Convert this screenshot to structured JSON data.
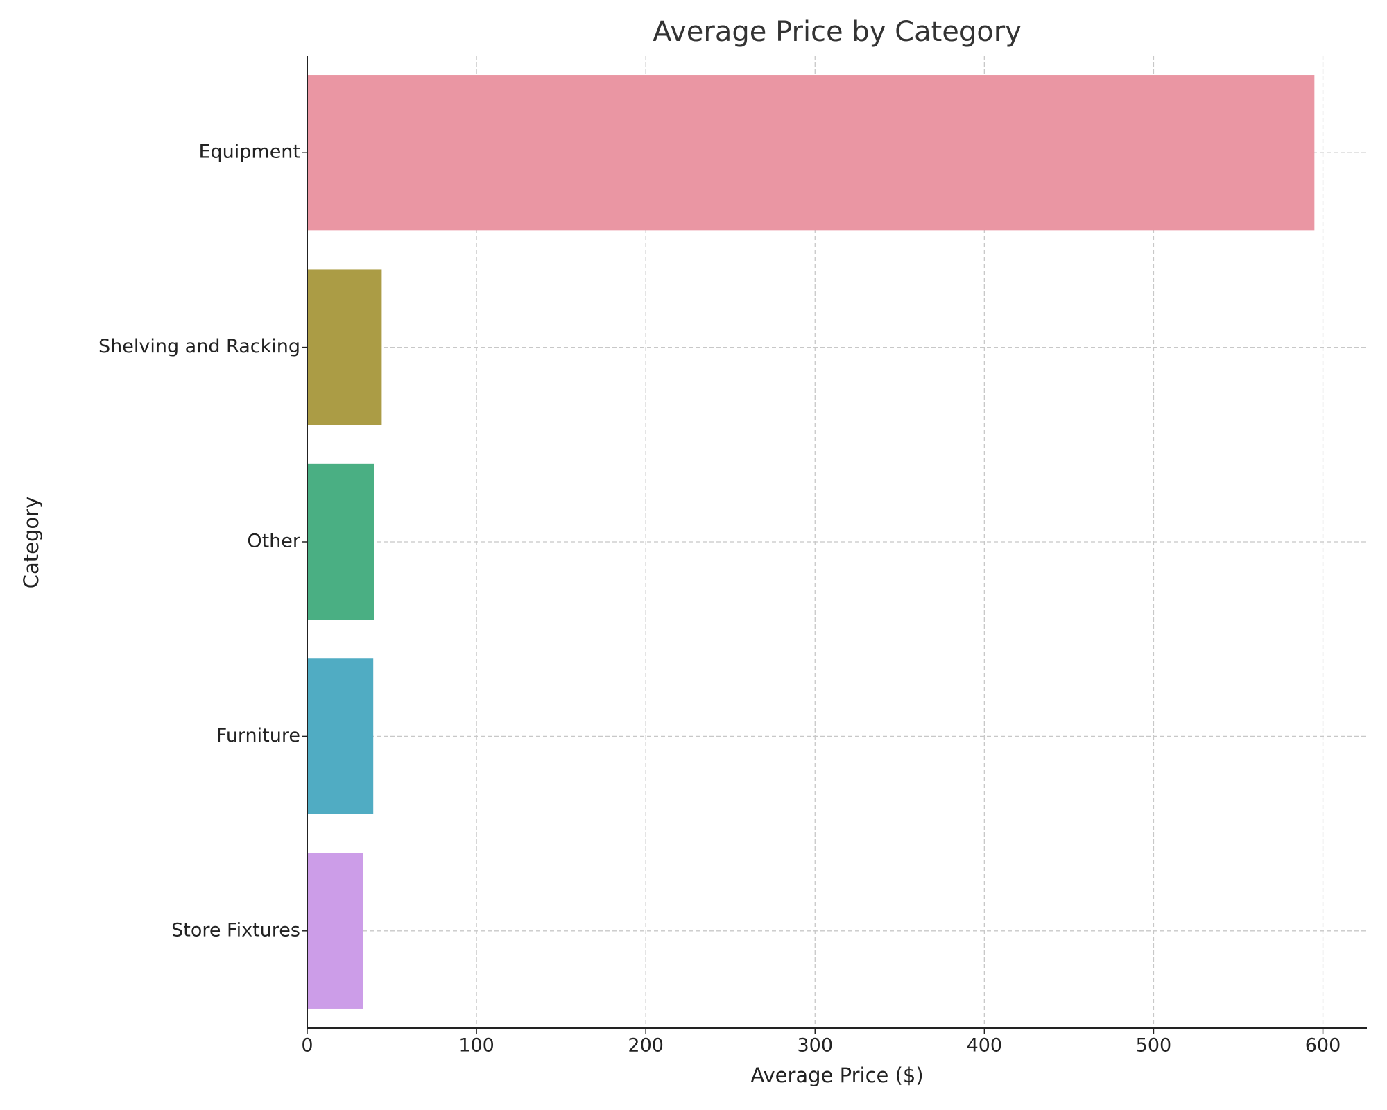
{
  "chart_data": {
    "type": "barh",
    "title": "Average Price by Category",
    "x_label": "Average Price ($)",
    "y_label": "Category",
    "categories": [
      "Equipment",
      "Shelving and Racking",
      "Other",
      "Furniture",
      "Store Fixtures"
    ],
    "values": [
      595,
      44,
      39.5,
      39,
      33
    ],
    "colors": [
      "#ea96a3",
      "#ab9c45",
      "#4aaf83",
      "#50acc3",
      "#cc9de8"
    ],
    "xlim": [
      0,
      626
    ],
    "xticks": [
      0,
      100,
      200,
      300,
      400,
      500,
      600
    ],
    "grid": true
  }
}
